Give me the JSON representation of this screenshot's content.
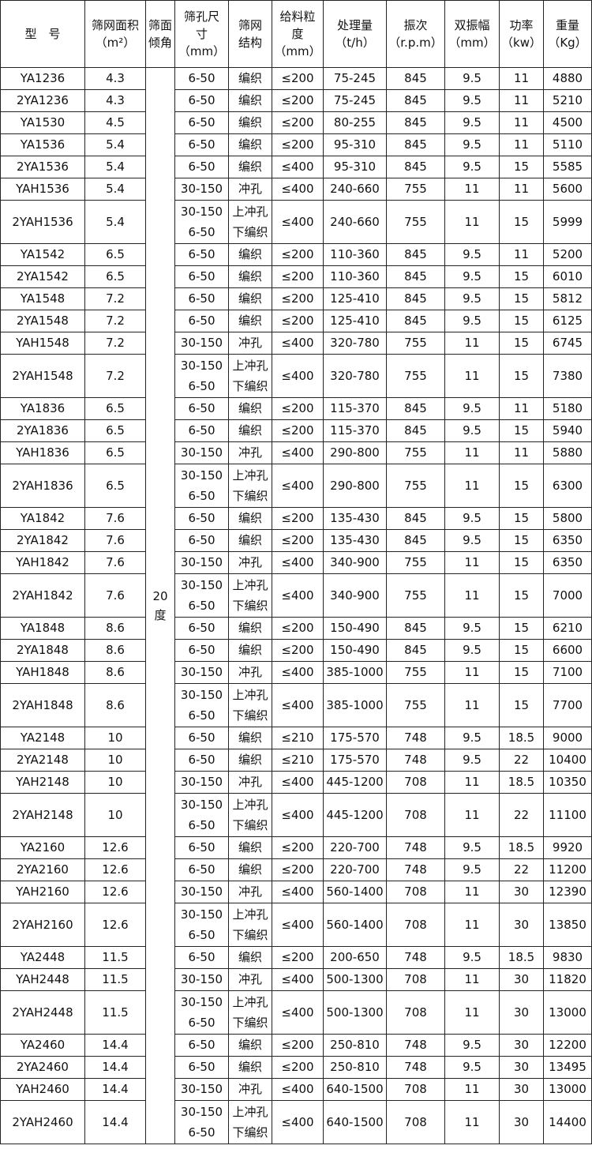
{
  "headers": [
    "型　号",
    "筛网面积\n（m²）",
    "筛面\n倾角",
    "筛孔尺\n寸\n（mm）",
    "筛网\n结构",
    "给料粒\n度\n（mm）",
    "处理量\n（t/h）",
    "振次\n（r.p.m）",
    "双振幅\n（mm）",
    "功率\n（kw）",
    "重量\n（Kg）"
  ],
  "angle": "20\n度",
  "rows": [
    [
      "YA1236",
      "4.3",
      "6-50",
      "编织",
      "≤200",
      "75-245",
      "845",
      "9.5",
      "11",
      "4880"
    ],
    [
      "2YA1236",
      "4.3",
      "6-50",
      "编织",
      "≤200",
      "75-245",
      "845",
      "9.5",
      "11",
      "5210"
    ],
    [
      "YA1530",
      "4.5",
      "6-50",
      "编织",
      "≤200",
      "80-255",
      "845",
      "9.5",
      "11",
      "4500"
    ],
    [
      "YA1536",
      "5.4",
      "6-50",
      "编织",
      "≤200",
      "95-310",
      "845",
      "9.5",
      "11",
      "5110"
    ],
    [
      "2YA1536",
      "5.4",
      "6-50",
      "编织",
      "≤400",
      "95-310",
      "845",
      "9.5",
      "15",
      "5585"
    ],
    [
      "YAH1536",
      "5.4",
      "30-150",
      "冲孔",
      "≤400",
      "240-660",
      "755",
      "11",
      "11",
      "5600"
    ],
    [
      "2YAH1536",
      "5.4",
      "30-150\n6-50",
      "上冲孔\n下编织",
      "≤400",
      "240-660",
      "755",
      "11",
      "15",
      "5999"
    ],
    [
      "YA1542",
      "6.5",
      "6-50",
      "编织",
      "≤200",
      "110-360",
      "845",
      "9.5",
      "11",
      "5200"
    ],
    [
      "2YA1542",
      "6.5",
      "6-50",
      "编织",
      "≤200",
      "110-360",
      "845",
      "9.5",
      "15",
      "6010"
    ],
    [
      "YA1548",
      "7.2",
      "6-50",
      "编织",
      "≤200",
      "125-410",
      "845",
      "9.5",
      "15",
      "5812"
    ],
    [
      "2YA1548",
      "7.2",
      "6-50",
      "编织",
      "≤200",
      "125-410",
      "845",
      "9.5",
      "15",
      "6125"
    ],
    [
      "YAH1548",
      "7.2",
      "30-150",
      "冲孔",
      "≤400",
      "320-780",
      "755",
      "11",
      "15",
      "6745"
    ],
    [
      "2YAH1548",
      "7.2",
      "30-150\n6-50",
      "上冲孔\n下编织",
      "≤400",
      "320-780",
      "755",
      "11",
      "15",
      "7380"
    ],
    [
      "YA1836",
      "6.5",
      "6-50",
      "编织",
      "≤200",
      "115-370",
      "845",
      "9.5",
      "11",
      "5180"
    ],
    [
      "2YA1836",
      "6.5",
      "6-50",
      "编织",
      "≤200",
      "115-370",
      "845",
      "9.5",
      "15",
      "5940"
    ],
    [
      "YAH1836",
      "6.5",
      "30-150",
      "冲孔",
      "≤400",
      "290-800",
      "755",
      "11",
      "11",
      "5880"
    ],
    [
      "2YAH1836",
      "6.5",
      "30-150\n6-50",
      "上冲孔\n下编织",
      "≤400",
      "290-800",
      "755",
      "11",
      "15",
      "6300"
    ],
    [
      "YA1842",
      "7.6",
      "6-50",
      "编织",
      "≤200",
      "135-430",
      "845",
      "9.5",
      "15",
      "5800"
    ],
    [
      "2YA1842",
      "7.6",
      "6-50",
      "编织",
      "≤200",
      "135-430",
      "845",
      "9.5",
      "15",
      "6350"
    ],
    [
      "YAH1842",
      "7.6",
      "30-150",
      "冲孔",
      "≤400",
      "340-900",
      "755",
      "11",
      "15",
      "6350"
    ],
    [
      "2YAH1842",
      "7.6",
      "30-150\n6-50",
      "上冲孔\n下编织",
      "≤400",
      "340-900",
      "755",
      "11",
      "15",
      "7000"
    ],
    [
      "YA1848",
      "8.6",
      "6-50",
      "编织",
      "≤200",
      "150-490",
      "845",
      "9.5",
      "15",
      "6210"
    ],
    [
      "2YA1848",
      "8.6",
      "6-50",
      "编织",
      "≤200",
      "150-490",
      "845",
      "9.5",
      "15",
      "6600"
    ],
    [
      "YAH1848",
      "8.6",
      "30-150",
      "冲孔",
      "≤400",
      "385-1000",
      "755",
      "11",
      "15",
      "7100"
    ],
    [
      "2YAH1848",
      "8.6",
      "30-150\n6-50",
      "上冲孔\n下编织",
      "≤400",
      "385-1000",
      "755",
      "11",
      "15",
      "7700"
    ],
    [
      "YA2148",
      "10",
      "6-50",
      "编织",
      "≤210",
      "175-570",
      "748",
      "9.5",
      "18.5",
      "9000"
    ],
    [
      "2YA2148",
      "10",
      "6-50",
      "编织",
      "≤210",
      "175-570",
      "748",
      "9.5",
      "22",
      "10400"
    ],
    [
      "YAH2148",
      "10",
      "30-150",
      "冲孔",
      "≤400",
      "445-1200",
      "708",
      "11",
      "18.5",
      "10350"
    ],
    [
      "2YAH2148",
      "10",
      "30-150\n6-50",
      "上冲孔\n下编织",
      "≤400",
      "445-1200",
      "708",
      "11",
      "22",
      "11100"
    ],
    [
      "YA2160",
      "12.6",
      "6-50",
      "编织",
      "≤200",
      "220-700",
      "748",
      "9.5",
      "18.5",
      "9920"
    ],
    [
      "2YA2160",
      "12.6",
      "6-50",
      "编织",
      "≤200",
      "220-700",
      "748",
      "9.5",
      "22",
      "11200"
    ],
    [
      "YAH2160",
      "12.6",
      "30-150",
      "冲孔",
      "≤400",
      "560-1400",
      "708",
      "11",
      "30",
      "12390"
    ],
    [
      "2YAH2160",
      "12.6",
      "30-150\n6-50",
      "上冲孔\n下编织",
      "≤400",
      "560-1400",
      "708",
      "11",
      "30",
      "13850"
    ],
    [
      "YA2448",
      "11.5",
      "6-50",
      "编织",
      "≤200",
      "200-650",
      "748",
      "9.5",
      "18.5",
      "9830"
    ],
    [
      "YAH2448",
      "11.5",
      "30-150",
      "冲孔",
      "≤400",
      "500-1300",
      "708",
      "11",
      "30",
      "11820"
    ],
    [
      "2YAH2448",
      "11.5",
      "30-150\n6-50",
      "上冲孔\n下编织",
      "≤400",
      "500-1300",
      "708",
      "11",
      "30",
      "13000"
    ],
    [
      "YA2460",
      "14.4",
      "6-50",
      "编织",
      "≤200",
      "250-810",
      "748",
      "9.5",
      "30",
      "12200"
    ],
    [
      "2YA2460",
      "14.4",
      "6-50",
      "编织",
      "≤200",
      "250-810",
      "748",
      "9.5",
      "30",
      "13495"
    ],
    [
      "YAH2460",
      "14.4",
      "30-150",
      "冲孔",
      "≤400",
      "640-1500",
      "708",
      "11",
      "30",
      "13000"
    ],
    [
      "2YAH2460",
      "14.4",
      "30-150\n6-50",
      "上冲孔\n下编织",
      "≤400",
      "640-1500",
      "708",
      "11",
      "30",
      "14400"
    ]
  ]
}
